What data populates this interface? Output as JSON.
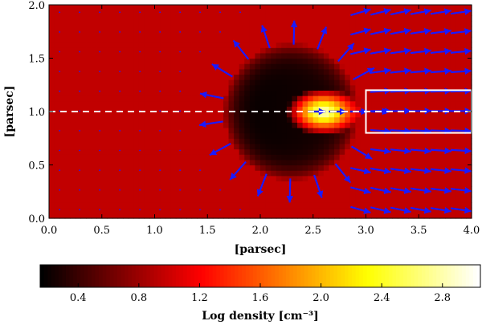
{
  "chart_data": {
    "type": "heatmap",
    "title": "",
    "xlabel": "[parsec]",
    "ylabel": "[parsec]",
    "xlim": [
      0.0,
      4.0
    ],
    "ylim": [
      0.0,
      2.0
    ],
    "x_ticks": [
      "0.0",
      "0.5",
      "1.0",
      "1.5",
      "2.0",
      "2.5",
      "3.0",
      "3.5",
      "4.0"
    ],
    "y_ticks": [
      "0.0",
      "0.5",
      "1.0",
      "1.5",
      "2.0"
    ],
    "background_log_density": 0.95,
    "cavity": {
      "center": [
        2.3,
        1.0
      ],
      "radius": 0.64,
      "min_log_density": 0.15
    },
    "hotspot": {
      "center": [
        2.6,
        1.0
      ],
      "radius": 0.35,
      "max_log_density": 3.05
    },
    "cut_line_y": 1.0,
    "highlight_box": {
      "x": [
        3.0,
        4.0
      ],
      "y": [
        0.8,
        1.2
      ]
    },
    "arrow_color": "#1a1aff",
    "line_color": "#ffffff",
    "colorbar": {
      "label": "Log density [cm⁻³]",
      "range": [
        0.15,
        3.05
      ],
      "ticks": [
        "0.4",
        "0.8",
        "1.2",
        "1.6",
        "2.0",
        "2.4",
        "2.8"
      ],
      "colormap": "hot"
    }
  }
}
